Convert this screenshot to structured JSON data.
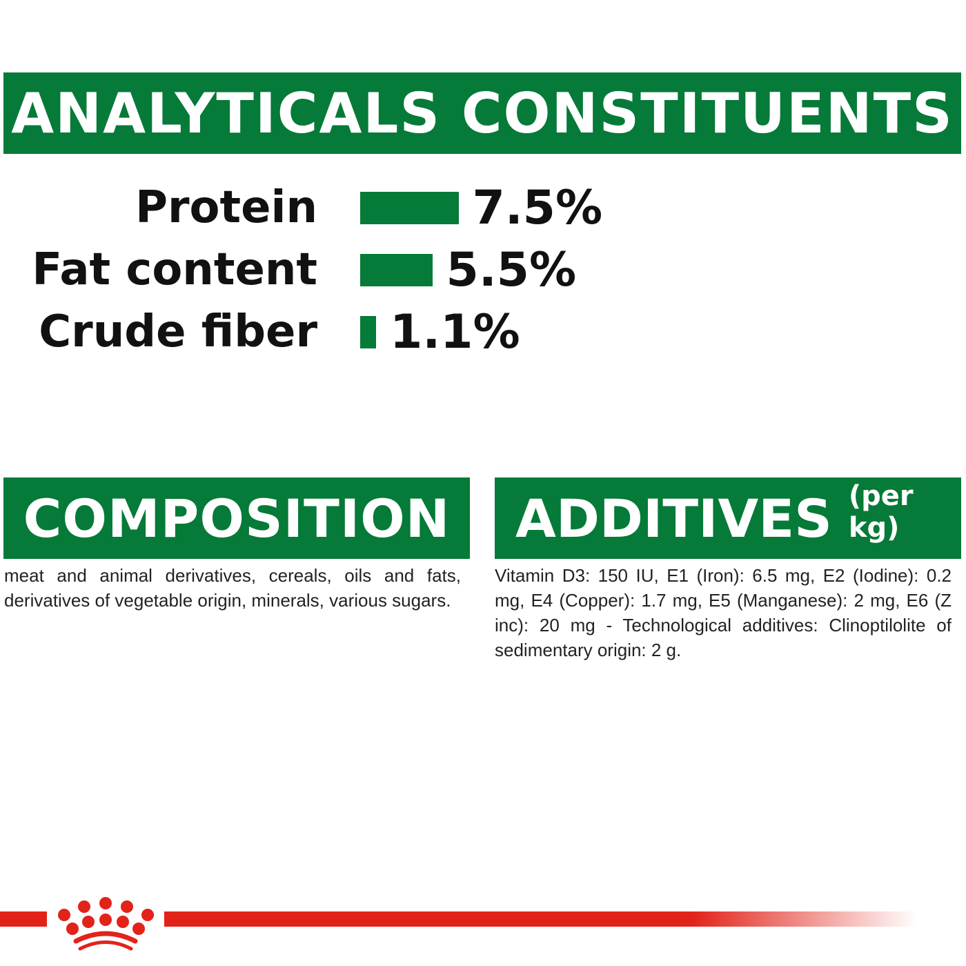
{
  "analytical": {
    "title": "ANALYTICALS CONSTITUENTS",
    "items": [
      {
        "label": "Protein",
        "value": 7.5,
        "display": "7.5%"
      },
      {
        "label": "Fat content",
        "value": 5.5,
        "display": "5.5%"
      },
      {
        "label": "Crude fiber",
        "value": 1.1,
        "display": "1.1%"
      }
    ]
  },
  "composition": {
    "title": "COMPOSITION",
    "text": "meat and animal derivatives, cereals, oils and fats, derivatives of vegetable origin, minerals, various sugars."
  },
  "additives": {
    "title": "ADDITIVES",
    "subtitle": "(per kg)",
    "text": "Vitamin D3: 150 IU, E1 (Iron): 6.5 mg, E2 (Iodine): 0.2 mg, E4 (Copper): 1.7 mg, E5 (Manganese): 2 mg, E6 (Z inc): 20 mg - Technological additives: Clinoptilolite of sedimentary origin: 2 g."
  },
  "colors": {
    "green": "#067a38",
    "red": "#e2231a"
  },
  "logo": {
    "icon": "crown-logo-icon"
  }
}
